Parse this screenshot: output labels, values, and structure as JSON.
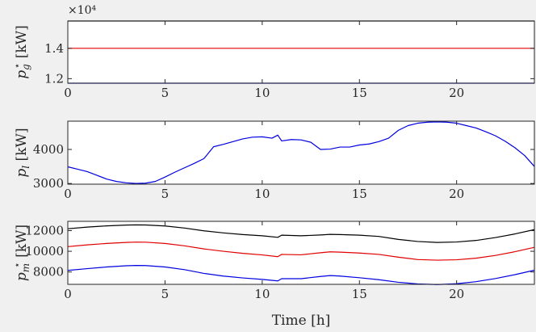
{
  "colors": {
    "black": "#000000",
    "red": "#e00000",
    "blue": "#0000e0",
    "frame": "#262626"
  },
  "chart_data": [
    {
      "type": "line",
      "xlabel": "",
      "ylabel_main": "p",
      "ylabel_sub": "g",
      "ylabel_sup": "⋆",
      "ylabel_unit": "[kW]",
      "xlim": [
        0,
        24
      ],
      "ylim": [
        11700,
        15800
      ],
      "multiplier": "×10⁴",
      "xticks": [
        "0",
        "5",
        "10",
        "15",
        "20"
      ],
      "yticks": [
        {
          "value": 12000,
          "label": "1.2"
        },
        {
          "value": 14000,
          "label": "1.4"
        }
      ],
      "series": [
        {
          "color": "#000000",
          "x": [
            0,
            24
          ],
          "values": [
            15800,
            15800
          ]
        },
        {
          "color": "#e00000",
          "x": [
            0,
            24
          ],
          "values": [
            14000,
            14000
          ]
        },
        {
          "color": "#0000e0",
          "x": [
            0,
            24
          ],
          "values": [
            11700,
            11700
          ]
        }
      ]
    },
    {
      "type": "line",
      "xlabel": "",
      "ylabel_main": "p",
      "ylabel_sub": "l",
      "ylabel_sup": "",
      "ylabel_unit": "[kW]",
      "xlim": [
        0,
        24
      ],
      "ylim": [
        2980,
        4830
      ],
      "xticks": [
        "0",
        "5",
        "10",
        "15",
        "20"
      ],
      "yticks": [
        {
          "value": 3000,
          "label": "3000"
        },
        {
          "value": 4000,
          "label": "4000"
        }
      ],
      "series": [
        {
          "color": "#0000e0",
          "x": [
            0,
            0.5,
            1,
            1.5,
            2,
            2.5,
            3,
            3.5,
            4,
            4.5,
            5,
            5.5,
            6,
            6.5,
            7,
            7.5,
            8,
            8.5,
            9,
            9.5,
            10,
            10.5,
            10.8,
            11,
            11.5,
            12,
            12.5,
            13,
            13.5,
            14,
            14.5,
            15,
            15.5,
            16,
            16.5,
            17,
            17.5,
            18,
            18.5,
            19,
            19.5,
            20,
            20.5,
            21,
            21.5,
            22,
            22.5,
            23,
            23.5,
            24
          ],
          "values": [
            3490,
            3420,
            3350,
            3240,
            3130,
            3060,
            3020,
            3000,
            3010,
            3060,
            3190,
            3330,
            3460,
            3590,
            3730,
            4080,
            4150,
            4230,
            4310,
            4360,
            4370,
            4330,
            4420,
            4250,
            4290,
            4280,
            4210,
            4000,
            4010,
            4070,
            4070,
            4130,
            4160,
            4230,
            4330,
            4560,
            4700,
            4770,
            4800,
            4810,
            4800,
            4770,
            4700,
            4630,
            4520,
            4400,
            4240,
            4050,
            3820,
            3500
          ]
        }
      ]
    },
    {
      "type": "line",
      "xlabel": "Time [h]",
      "ylabel_main": "p",
      "ylabel_sub": "m",
      "ylabel_sup": "⋆",
      "ylabel_unit": "[kW]",
      "xlim": [
        0,
        24
      ],
      "ylim": [
        6800,
        12900
      ],
      "xticks": [
        "0",
        "5",
        "10",
        "15",
        "20"
      ],
      "yticks": [
        {
          "value": 8000,
          "label": "8000"
        },
        {
          "value": 10000,
          "label": "10000"
        },
        {
          "value": 12000,
          "label": "12000"
        }
      ],
      "series": [
        {
          "color": "#000000",
          "x": [
            0,
            1,
            2,
            3,
            3.5,
            4,
            5,
            6,
            7,
            8,
            9,
            10,
            10.8,
            11,
            12,
            13,
            13.5,
            14,
            15,
            16,
            17,
            18,
            19,
            20,
            21,
            22,
            23,
            24
          ],
          "values": [
            12180,
            12340,
            12460,
            12540,
            12560,
            12550,
            12450,
            12250,
            11980,
            11780,
            11620,
            11500,
            11350,
            11560,
            11500,
            11580,
            11640,
            11620,
            11560,
            11440,
            11150,
            10950,
            10860,
            10900,
            11050,
            11330,
            11680,
            12100
          ]
        },
        {
          "color": "#e00000",
          "x": [
            0,
            1,
            2,
            3,
            3.5,
            4,
            5,
            6,
            7,
            8,
            9,
            10,
            10.8,
            11,
            12,
            13,
            13.5,
            14,
            15,
            16,
            17,
            18,
            19,
            20,
            21,
            22,
            23,
            24
          ],
          "values": [
            10450,
            10620,
            10760,
            10860,
            10890,
            10880,
            10760,
            10530,
            10230,
            10000,
            9800,
            9650,
            9480,
            9700,
            9660,
            9860,
            9950,
            9920,
            9830,
            9700,
            9430,
            9200,
            9140,
            9180,
            9330,
            9600,
            9960,
            10380
          ]
        },
        {
          "color": "#0000e0",
          "x": [
            0,
            1,
            2,
            3,
            3.5,
            4,
            5,
            6,
            7,
            8,
            9,
            10,
            10.8,
            11,
            12,
            13,
            13.5,
            14,
            15,
            16,
            17,
            18,
            19,
            20,
            21,
            22,
            23,
            24
          ],
          "values": [
            8150,
            8320,
            8480,
            8600,
            8630,
            8620,
            8480,
            8220,
            7860,
            7600,
            7420,
            7280,
            7130,
            7350,
            7350,
            7560,
            7650,
            7600,
            7440,
            7250,
            7000,
            6840,
            6780,
            6860,
            7060,
            7360,
            7740,
            8170
          ]
        }
      ]
    }
  ]
}
